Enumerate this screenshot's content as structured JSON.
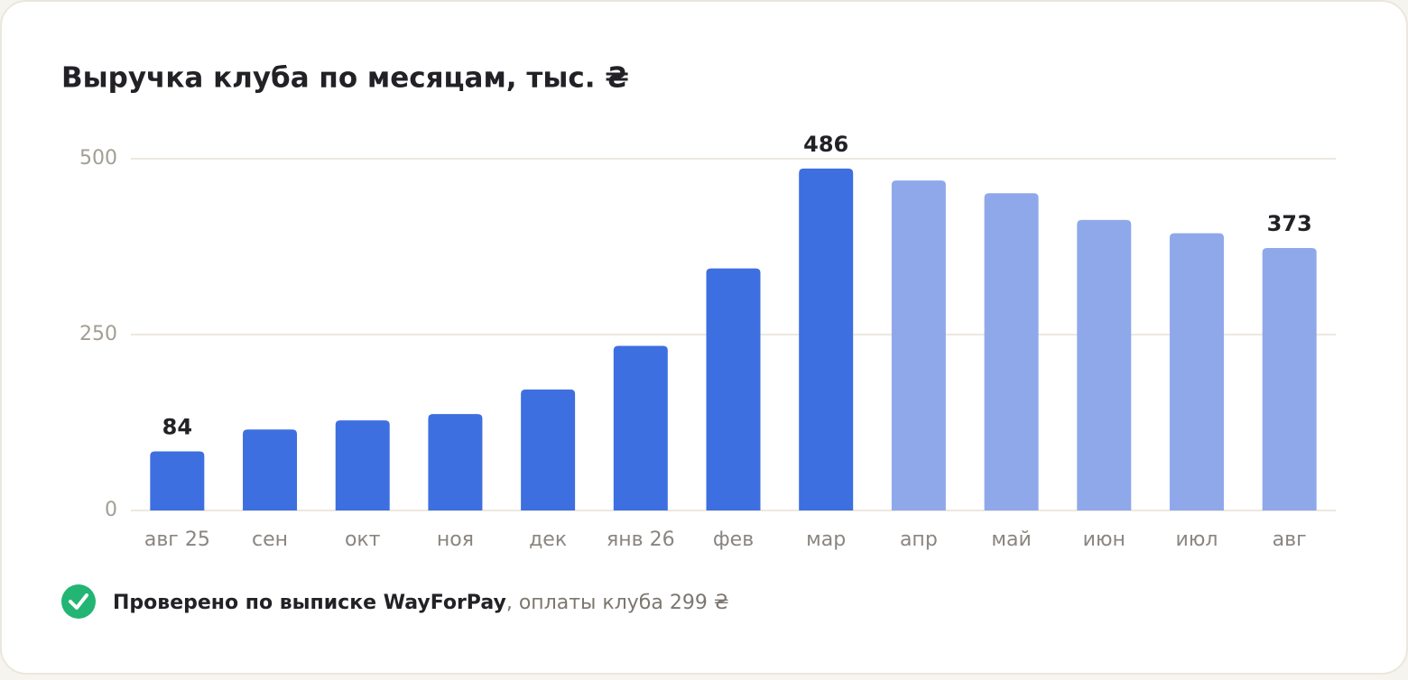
{
  "chart_data": {
    "type": "bar",
    "title": "Выручка клуба по месяцам, тыс. ₴",
    "categories": [
      "авг 25",
      "сен",
      "окт",
      "ноя",
      "дек",
      "янв 26",
      "фев",
      "мар",
      "апр",
      "май",
      "июн",
      "июл",
      "авг"
    ],
    "values": [
      84,
      115,
      128,
      137,
      172,
      234,
      344,
      486,
      469,
      451,
      413,
      394,
      373
    ],
    "value_labels": [
      "84",
      null,
      null,
      null,
      null,
      null,
      null,
      "486",
      null,
      null,
      null,
      null,
      "373"
    ],
    "colors": [
      "#3d6fe0",
      "#3d6fe0",
      "#3d6fe0",
      "#3d6fe0",
      "#3d6fe0",
      "#3d6fe0",
      "#3d6fe0",
      "#3d6fe0",
      "#8fa8ea",
      "#8fa8ea",
      "#8fa8ea",
      "#8fa8ea",
      "#8fa8ea"
    ],
    "ylim": [
      0,
      500
    ],
    "yticks": [
      0,
      250,
      500
    ],
    "grid": true
  },
  "footer": {
    "bold": "Проверено по выписке WayForPay",
    "text": ", оплаты клуба 299 ₴"
  }
}
